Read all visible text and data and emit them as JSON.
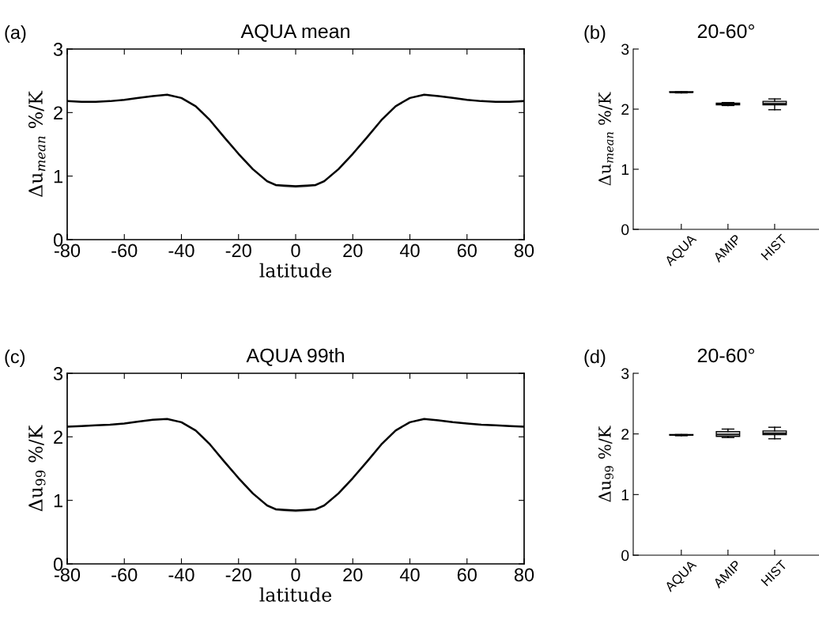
{
  "chart_data": [
    {
      "type": "line",
      "title": "AQUA mean",
      "xlabel": "latitude",
      "ylabel": "Δu$_{mean}$ %/K",
      "annotations": [
        "(a)"
      ],
      "x": [
        -80,
        -75,
        -70,
        -65,
        -60,
        -55,
        -50,
        -45,
        -40,
        -35,
        -30,
        -25,
        -20,
        -15,
        -10,
        -7,
        -4,
        0,
        4,
        7,
        10,
        15,
        20,
        25,
        30,
        35,
        40,
        45,
        50,
        55,
        60,
        65,
        70,
        75,
        80
      ],
      "series": [
        {
          "color": "#000000",
          "values": [
            2.18,
            2.17,
            2.17,
            2.18,
            2.2,
            2.23,
            2.26,
            2.28,
            2.23,
            2.1,
            1.88,
            1.61,
            1.35,
            1.11,
            0.92,
            0.86,
            0.85,
            0.84,
            0.85,
            0.86,
            0.92,
            1.11,
            1.35,
            1.61,
            1.88,
            2.1,
            2.23,
            2.28,
            2.26,
            2.23,
            2.2,
            2.18,
            2.17,
            2.17,
            2.18
          ],
          "lower": [
            2.17,
            2.16,
            2.16,
            2.17,
            2.19,
            2.22,
            2.25,
            2.27,
            2.22,
            2.09,
            1.87,
            1.6,
            1.33,
            1.09,
            0.9,
            0.84,
            0.82,
            0.81,
            0.82,
            0.84,
            0.9,
            1.09,
            1.33,
            1.6,
            1.87,
            2.09,
            2.22,
            2.27,
            2.25,
            2.22,
            2.19,
            2.17,
            2.16,
            2.16,
            2.16
          ],
          "upper": [
            2.19,
            2.18,
            2.18,
            2.19,
            2.21,
            2.24,
            2.27,
            2.29,
            2.24,
            2.11,
            1.89,
            1.62,
            1.37,
            1.13,
            0.94,
            0.88,
            0.87,
            0.86,
            0.87,
            0.88,
            0.94,
            1.13,
            1.37,
            1.62,
            1.89,
            2.11,
            2.24,
            2.29,
            2.27,
            2.24,
            2.21,
            2.19,
            2.18,
            2.18,
            2.2
          ]
        }
      ],
      "xlim": [
        -80,
        80
      ],
      "xticks": [
        -80,
        -60,
        -40,
        -20,
        0,
        20,
        40,
        60,
        80
      ],
      "ylim": [
        0,
        3
      ],
      "yticks": [
        0,
        1,
        2,
        3
      ],
      "grid": false,
      "marker": "none",
      "line_style": "solid"
    },
    {
      "type": "box",
      "title": "20-60°",
      "ylabel": "Δu$_{mean}$ %/K",
      "annotations": [
        "(b)"
      ],
      "categories": [
        "AQUA",
        "AMIP",
        "HIST"
      ],
      "color": "#c8c8c8",
      "boxes": [
        {
          "low": 2.27,
          "q1": 2.28,
          "median": 2.28,
          "q3": 2.29,
          "high": 2.29
        },
        {
          "low": 2.06,
          "q1": 2.07,
          "median": 2.08,
          "q3": 2.1,
          "high": 2.11
        },
        {
          "low": 1.99,
          "q1": 2.07,
          "median": 2.09,
          "q3": 2.13,
          "high": 2.17
        }
      ],
      "ylim": [
        0,
        3
      ],
      "yticks": [
        0,
        1,
        2,
        3
      ],
      "grid": false
    },
    {
      "type": "line",
      "title": "AQUA 99th",
      "xlabel": "latitude",
      "ylabel": "Δu$_{99}$ %/K",
      "annotations": [
        "(c)"
      ],
      "x": [
        -80,
        -75,
        -70,
        -65,
        -60,
        -55,
        -50,
        -45,
        -40,
        -35,
        -30,
        -25,
        -20,
        -15,
        -10,
        -7,
        -4,
        0,
        4,
        7,
        10,
        15,
        20,
        25,
        30,
        35,
        40,
        45,
        50,
        55,
        60,
        65,
        70,
        75,
        80
      ],
      "series": [
        {
          "color": "#000000",
          "values": [
            2.16,
            2.17,
            2.18,
            2.19,
            2.21,
            2.24,
            2.27,
            2.28,
            2.23,
            2.1,
            1.88,
            1.61,
            1.35,
            1.11,
            0.92,
            0.86,
            0.85,
            0.84,
            0.85,
            0.86,
            0.92,
            1.11,
            1.35,
            1.61,
            1.88,
            2.1,
            2.23,
            2.28,
            2.26,
            2.23,
            2.21,
            2.19,
            2.18,
            2.17,
            2.16
          ],
          "lower": [
            2.15,
            2.16,
            2.17,
            2.18,
            2.2,
            2.23,
            2.26,
            2.27,
            2.22,
            2.09,
            1.87,
            1.6,
            1.33,
            1.09,
            0.9,
            0.84,
            0.82,
            0.81,
            0.82,
            0.84,
            0.9,
            1.09,
            1.33,
            1.6,
            1.87,
            2.09,
            2.22,
            2.27,
            2.25,
            2.22,
            2.2,
            2.18,
            2.17,
            2.16,
            2.15
          ],
          "upper": [
            2.17,
            2.18,
            2.19,
            2.2,
            2.22,
            2.25,
            2.28,
            2.29,
            2.24,
            2.11,
            1.89,
            1.62,
            1.37,
            1.13,
            0.94,
            0.88,
            0.87,
            0.86,
            0.87,
            0.88,
            0.94,
            1.13,
            1.37,
            1.62,
            1.89,
            2.11,
            2.24,
            2.29,
            2.27,
            2.24,
            2.22,
            2.2,
            2.19,
            2.18,
            2.17
          ]
        }
      ],
      "xlim": [
        -80,
        80
      ],
      "xticks": [
        -80,
        -60,
        -40,
        -20,
        0,
        20,
        40,
        60,
        80
      ],
      "ylim": [
        0,
        3
      ],
      "yticks": [
        0,
        1,
        2,
        3
      ],
      "grid": false,
      "marker": "none",
      "line_style": "solid"
    },
    {
      "type": "box",
      "title": "20-60°",
      "ylabel": "Δu$_{99}$ %/K",
      "annotations": [
        "(d)"
      ],
      "categories": [
        "AQUA",
        "AMIP",
        "HIST"
      ],
      "color": "#c8c8c8",
      "boxes": [
        {
          "low": 1.97,
          "q1": 1.98,
          "median": 1.98,
          "q3": 1.99,
          "high": 1.99
        },
        {
          "low": 1.94,
          "q1": 1.96,
          "median": 1.99,
          "q3": 2.04,
          "high": 2.08
        },
        {
          "low": 1.92,
          "q1": 1.99,
          "median": 2.01,
          "q3": 2.05,
          "high": 2.11
        }
      ],
      "ylim": [
        0,
        3
      ],
      "yticks": [
        0,
        1,
        2,
        3
      ],
      "grid": false
    }
  ]
}
